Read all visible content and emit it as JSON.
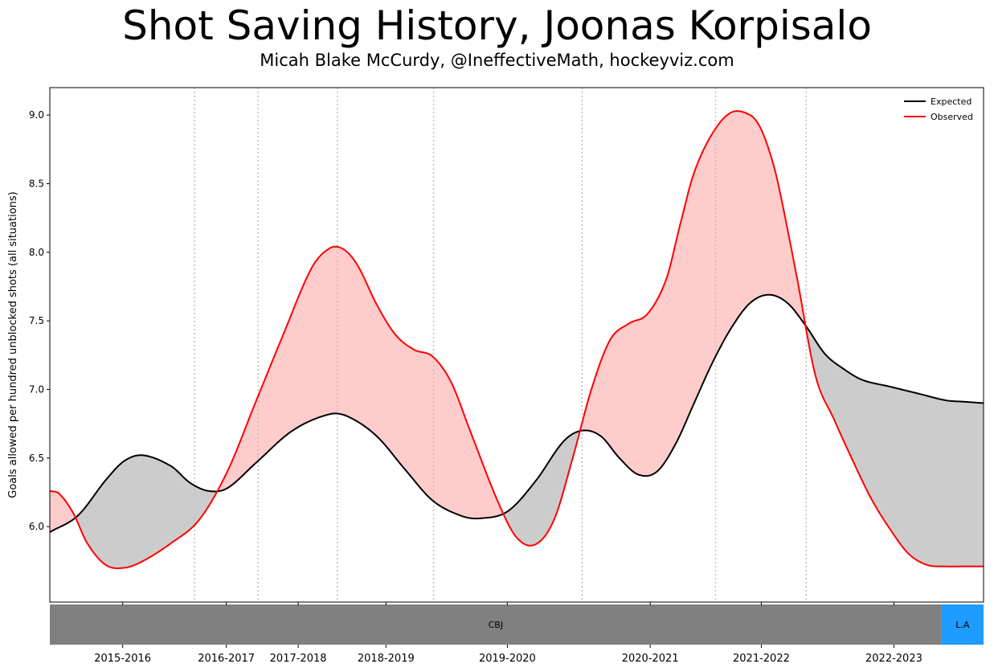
{
  "header": {
    "title": "Shot Saving History, Joonas Korpisalo",
    "subtitle": "Micah Blake McCurdy, @IneffectiveMath, hockeyviz.com"
  },
  "colors": {
    "expected": "#000000",
    "observed": "#ff0000",
    "fill_worse": "#ffcccc",
    "fill_better": "#cccccc",
    "season_divider": "#c0c0c0",
    "team_cbj": "#808080",
    "team_la": "#1e9bff"
  },
  "chart_data": {
    "type": "line",
    "title": "Shot Saving History, Joonas Korpisalo",
    "subtitle": "Micah Blake McCurdy, @IneffectiveMath, hockeyviz.com",
    "xlabel": "",
    "ylabel": "Goals allowed per hundred unblocked shots (all situations)",
    "xlim": [
      0,
      100
    ],
    "ylim": [
      5.45,
      9.2
    ],
    "y_ticks": [
      6.0,
      6.5,
      7.0,
      7.5,
      8.0,
      8.5,
      9.0
    ],
    "grid": false,
    "legend_position": "top-right",
    "x_ticks": [
      {
        "label": "2015-2016",
        "x": 7.8
      },
      {
        "label": "2016-2017",
        "x": 18.9
      },
      {
        "label": "2017-2018",
        "x": 26.6
      },
      {
        "label": "2018-2019",
        "x": 36.0
      },
      {
        "label": "2019-2020",
        "x": 49.0
      },
      {
        "label": "2020-2021",
        "x": 64.3
      },
      {
        "label": "2021-2022",
        "x": 76.2
      },
      {
        "label": "2022-2023",
        "x": 90.4
      }
    ],
    "season_dividers": [
      15.5,
      22.3,
      30.8,
      41.1,
      57.0,
      71.3,
      81.0
    ],
    "series": [
      {
        "name": "Expected",
        "x": [
          0,
          3,
          6,
          8,
          10,
          13,
          15,
          17,
          19,
          22,
          26,
          30,
          32,
          35,
          38,
          41,
          44,
          46,
          49,
          52,
          55,
          57,
          59,
          61,
          63,
          65,
          67,
          69,
          71,
          73,
          75,
          77,
          79,
          81,
          83,
          85,
          87,
          90,
          93,
          96,
          98,
          100
        ],
        "y": [
          5.96,
          6.08,
          6.34,
          6.48,
          6.52,
          6.44,
          6.32,
          6.26,
          6.28,
          6.46,
          6.7,
          6.82,
          6.8,
          6.66,
          6.42,
          6.19,
          6.08,
          6.06,
          6.11,
          6.33,
          6.62,
          6.7,
          6.66,
          6.5,
          6.38,
          6.4,
          6.6,
          6.9,
          7.2,
          7.45,
          7.63,
          7.69,
          7.63,
          7.46,
          7.26,
          7.15,
          7.07,
          7.02,
          6.97,
          6.92,
          6.91,
          6.9
        ]
      },
      {
        "name": "Observed",
        "x": [
          0,
          1,
          2.5,
          4,
          6,
          8,
          10,
          13,
          16,
          19,
          22,
          25,
          28,
          30,
          31.5,
          33,
          35,
          37,
          39,
          41,
          43,
          45,
          48,
          50,
          52,
          54,
          56,
          58,
          60,
          62,
          64,
          66,
          67.5,
          69,
          71,
          73,
          75,
          76,
          77,
          78,
          80,
          82,
          84,
          86,
          88,
          90,
          92,
          94,
          96,
          98,
          100
        ],
        "y": [
          6.26,
          6.24,
          6.1,
          5.88,
          5.72,
          5.7,
          5.75,
          5.88,
          6.05,
          6.4,
          6.9,
          7.4,
          7.88,
          8.03,
          8.02,
          7.9,
          7.62,
          7.4,
          7.29,
          7.24,
          7.05,
          6.7,
          6.18,
          5.92,
          5.87,
          6.05,
          6.5,
          7.0,
          7.36,
          7.48,
          7.55,
          7.8,
          8.2,
          8.58,
          8.87,
          9.02,
          9.0,
          8.92,
          8.75,
          8.5,
          7.82,
          7.1,
          6.78,
          6.48,
          6.2,
          5.98,
          5.8,
          5.72,
          5.71,
          5.71,
          5.71
        ]
      }
    ],
    "teams": [
      {
        "label": "CBJ",
        "from": 0,
        "to": 95.5
      },
      {
        "label": "L.A",
        "from": 95.5,
        "to": 100
      }
    ]
  }
}
